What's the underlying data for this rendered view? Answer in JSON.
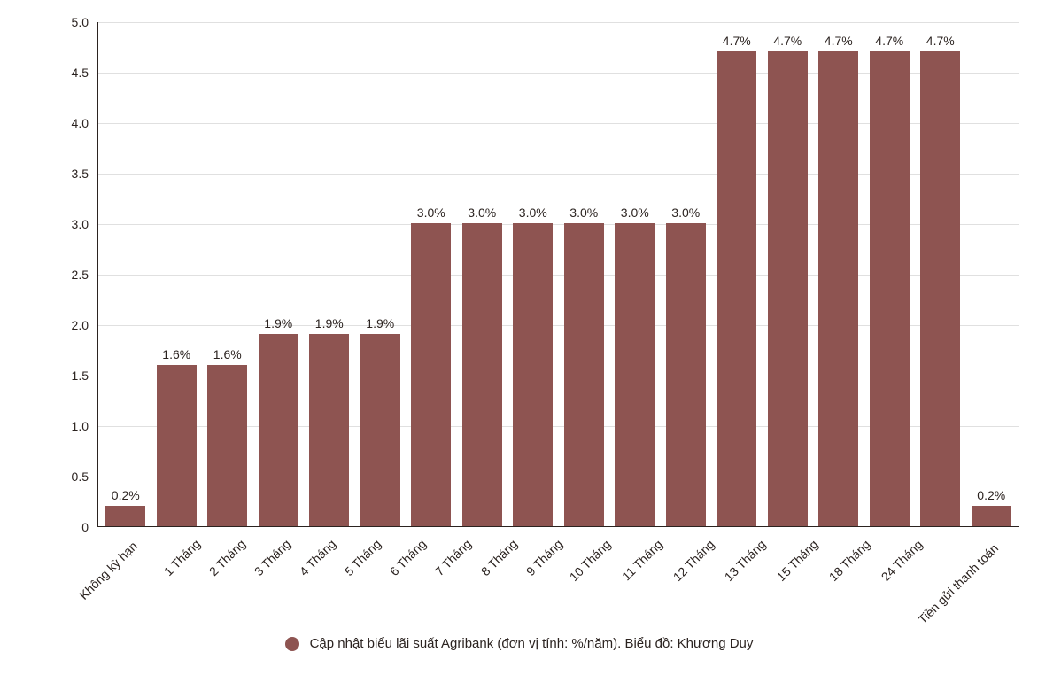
{
  "chart": {
    "type": "bar",
    "categories": [
      "Không kỳ hạn",
      "1 Tháng",
      "2 Tháng",
      "3 Tháng",
      "4 Tháng",
      "5 Tháng",
      "6 Tháng",
      "7 Tháng",
      "8 Tháng",
      "9 Tháng",
      "10 Tháng",
      "11 Tháng",
      "12 Tháng",
      "13 Tháng",
      "15 Tháng",
      "18 Tháng",
      "24 Tháng",
      "Tiền gửi thanh toán"
    ],
    "values": [
      0.2,
      1.6,
      1.6,
      1.9,
      1.9,
      1.9,
      3.0,
      3.0,
      3.0,
      3.0,
      3.0,
      3.0,
      4.7,
      4.7,
      4.7,
      4.7,
      4.7,
      0.2
    ],
    "value_labels": [
      "0.2%",
      "1.6%",
      "1.6%",
      "1.9%",
      "1.9%",
      "1.9%",
      "3.0%",
      "3.0%",
      "3.0%",
      "3.0%",
      "3.0%",
      "3.0%",
      "4.7%",
      "4.7%",
      "4.7%",
      "4.7%",
      "4.7%",
      "0.2%"
    ],
    "bar_color": "#8e5451",
    "ylim": [
      0,
      5.0
    ],
    "ytick_step": 0.5,
    "yticks": [
      "0",
      "0.5",
      "1.0",
      "1.5",
      "2.0",
      "2.5",
      "3.0",
      "3.5",
      "4.0",
      "4.5",
      "5.0"
    ],
    "background_color": "#ffffff",
    "grid_color": "#e0e0e0",
    "axis_color": "#2b2320",
    "label_fontsize": 14,
    "value_label_fontsize": 14,
    "bar_width": 0.78,
    "legend_text": "Cập nhật biểu lãi suất Agribank (đơn vị tính: %/năm). Biểu đồ: Khương Duy",
    "legend_swatch_color": "#8e5451"
  }
}
